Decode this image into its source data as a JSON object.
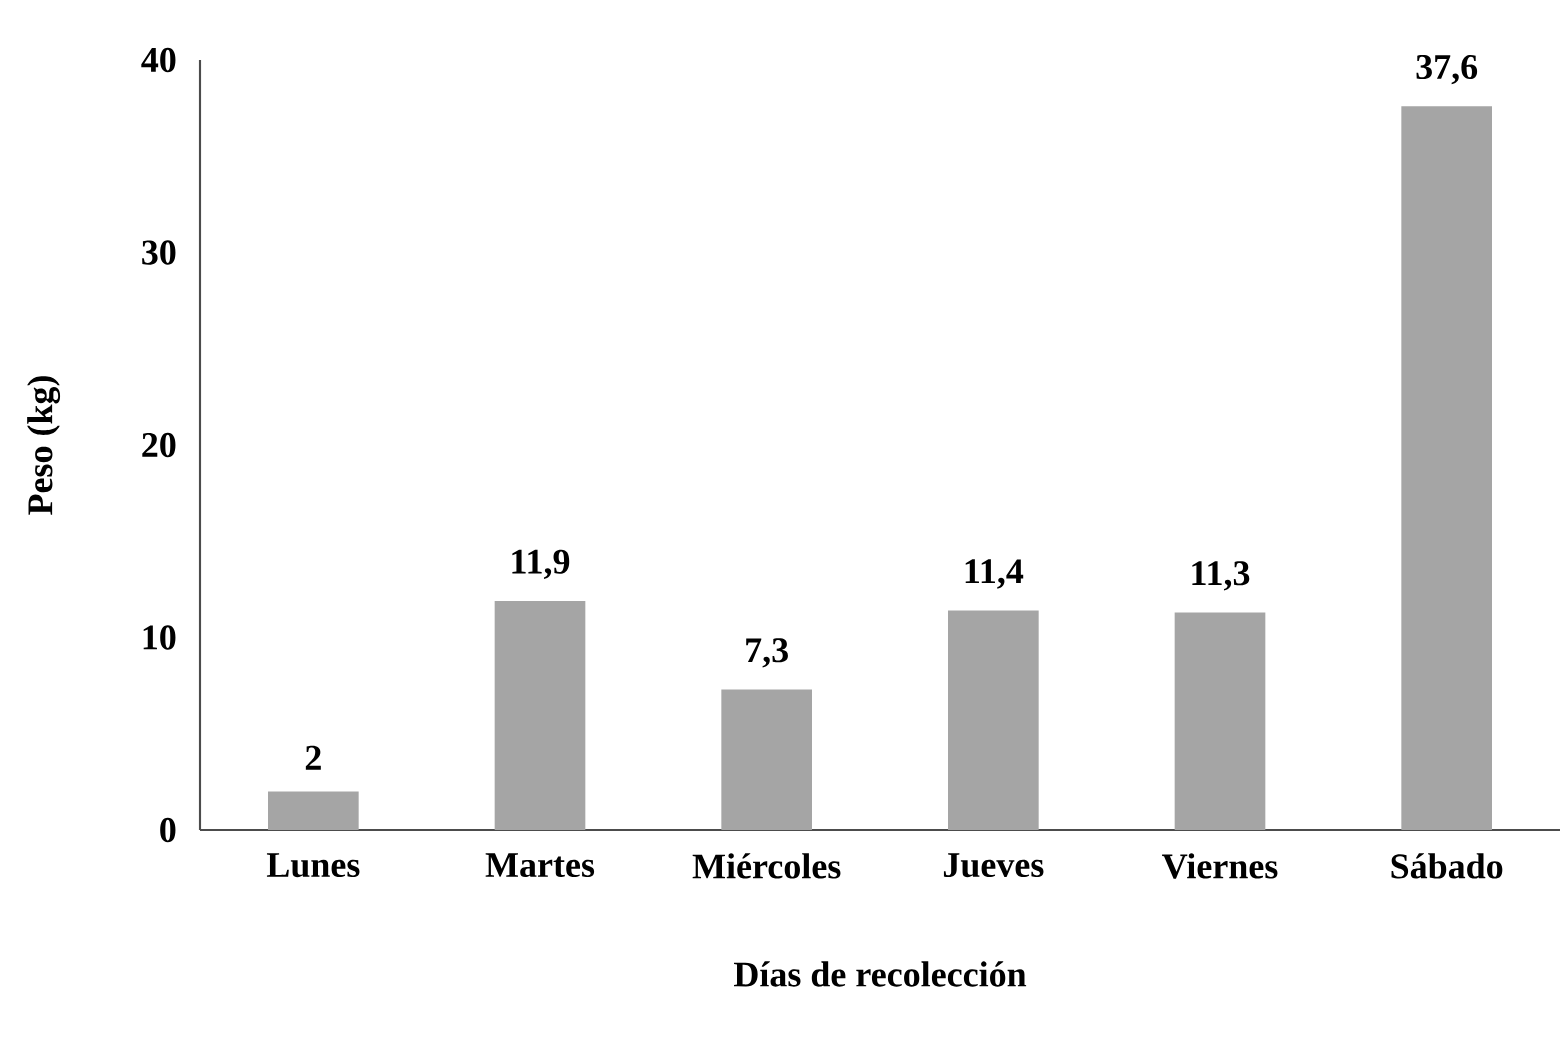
{
  "chart_data": {
    "type": "bar",
    "xlabel": "Días de recolección",
    "ylabel": "Peso (kg)",
    "categories": [
      "Lunes",
      "Martes",
      "Miércoles",
      "Jueves",
      "Viernes",
      "Sábado"
    ],
    "values": [
      2,
      11.9,
      7.3,
      11.4,
      11.3,
      37.6
    ],
    "value_labels": [
      "2",
      "11,9",
      "7,3",
      "11,4",
      "11,3",
      "37,6"
    ],
    "color": "#a5a5a5",
    "ylim": [
      0,
      40
    ],
    "yticks": [
      0,
      10,
      20,
      30,
      40
    ]
  }
}
